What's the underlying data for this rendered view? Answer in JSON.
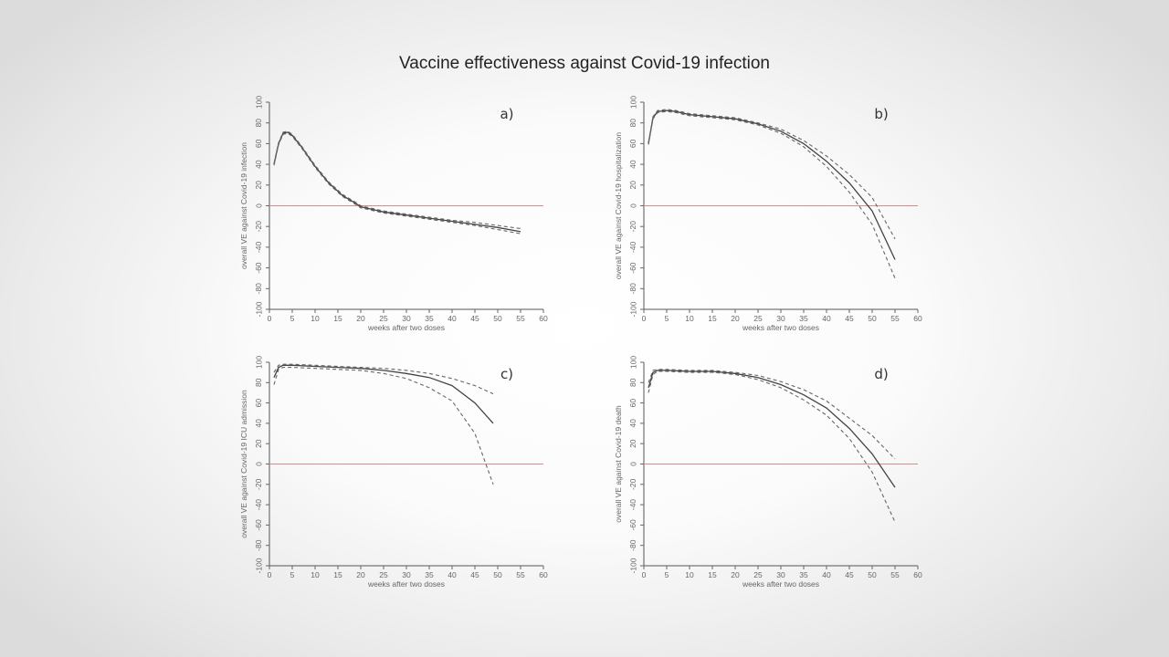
{
  "title": "Vaccine effectiveness against Covid-19 infection",
  "chart_data": [
    {
      "type": "line",
      "panel_label": "a)",
      "xlabel": "weeks after two doses",
      "ylabel": "overall VE against Covid-19 infection",
      "xlim": [
        0,
        60
      ],
      "ylim": [
        -100,
        100
      ],
      "x_ticks": [
        0,
        5,
        10,
        15,
        20,
        25,
        30,
        35,
        40,
        45,
        50,
        55,
        60
      ],
      "y_ticks": [
        100,
        80,
        60,
        40,
        20,
        0,
        -20,
        -40,
        -60,
        -80,
        -100
      ],
      "reference_line": {
        "y": 0,
        "color": "#555555"
      },
      "series": [
        {
          "style": "solid",
          "x": [
            1,
            2,
            3,
            4,
            5,
            7,
            10,
            13,
            16,
            19,
            20,
            22,
            25,
            30,
            35,
            40,
            45,
            50,
            55
          ],
          "y": [
            40,
            60,
            70,
            71,
            68,
            57,
            38,
            22,
            10,
            2,
            -1,
            -3,
            -6,
            -9,
            -12,
            -15,
            -18,
            -21,
            -25
          ]
        },
        {
          "style": "dashed",
          "x": [
            1,
            2,
            3,
            4,
            5,
            7,
            10,
            13,
            16,
            19,
            20,
            22,
            25,
            30,
            35,
            40,
            45,
            50,
            55
          ],
          "y": [
            41,
            61,
            71,
            72,
            69,
            58,
            39,
            23,
            11,
            3,
            0,
            -2,
            -5,
            -8,
            -11,
            -14,
            -16,
            -19,
            -22
          ]
        },
        {
          "style": "dashed",
          "x": [
            1,
            2,
            3,
            4,
            5,
            7,
            10,
            13,
            16,
            19,
            20,
            22,
            25,
            30,
            35,
            40,
            45,
            50,
            55
          ],
          "y": [
            39,
            59,
            69,
            70,
            67,
            56,
            37,
            21,
            9,
            1,
            -2,
            -4,
            -7,
            -10,
            -13,
            -16,
            -19,
            -23,
            -27
          ]
        }
      ]
    },
    {
      "type": "line",
      "panel_label": "b)",
      "xlabel": "weeks after two doses",
      "ylabel": "overall VE against Covid-19 hospitalization",
      "xlim": [
        0,
        60
      ],
      "ylim": [
        -100,
        100
      ],
      "x_ticks": [
        0,
        5,
        10,
        15,
        20,
        25,
        30,
        35,
        40,
        45,
        50,
        55,
        60
      ],
      "y_ticks": [
        100,
        80,
        60,
        40,
        20,
        0,
        -20,
        -40,
        -60,
        -80,
        -100
      ],
      "reference_line": {
        "y": 0,
        "color": "#d98a8a"
      },
      "series": [
        {
          "style": "solid",
          "x": [
            1,
            2,
            3,
            5,
            7,
            10,
            15,
            20,
            25,
            30,
            35,
            40,
            45,
            50,
            55
          ],
          "y": [
            60,
            85,
            91,
            92,
            91,
            88,
            86,
            84,
            79,
            72,
            60,
            43,
            22,
            -5,
            -52
          ]
        },
        {
          "style": "dashed",
          "x": [
            1,
            2,
            3,
            5,
            7,
            10,
            15,
            20,
            25,
            30,
            35,
            40,
            45,
            50,
            55
          ],
          "y": [
            61,
            86,
            92,
            93,
            92,
            89,
            87,
            85,
            80,
            74,
            63,
            48,
            30,
            8,
            -32
          ]
        },
        {
          "style": "dashed",
          "x": [
            1,
            2,
            3,
            5,
            7,
            10,
            15,
            20,
            25,
            30,
            35,
            40,
            45,
            50,
            55
          ],
          "y": [
            59,
            84,
            90,
            91,
            90,
            87,
            85,
            83,
            78,
            70,
            57,
            38,
            13,
            -18,
            -70
          ]
        }
      ]
    },
    {
      "type": "line",
      "panel_label": "c)",
      "xlabel": "weeks after two doses",
      "ylabel": "overall VE against Covid-19 ICU admission",
      "xlim": [
        0,
        60
      ],
      "ylim": [
        -100,
        100
      ],
      "x_ticks": [
        0,
        5,
        10,
        15,
        20,
        25,
        30,
        35,
        40,
        45,
        50,
        55,
        60
      ],
      "y_ticks": [
        100,
        80,
        60,
        40,
        20,
        0,
        -20,
        -40,
        -60,
        -80,
        -100
      ],
      "reference_line": {
        "y": 0,
        "color": "#d98a8a"
      },
      "series": [
        {
          "style": "solid",
          "x": [
            1,
            2,
            3,
            5,
            10,
            15,
            20,
            25,
            30,
            35,
            40,
            45,
            49
          ],
          "y": [
            85,
            95,
            97,
            97,
            96,
            95,
            94,
            92,
            89,
            85,
            77,
            60,
            40
          ]
        },
        {
          "style": "dashed",
          "x": [
            1,
            2,
            3,
            5,
            10,
            15,
            20,
            25,
            30,
            35,
            40,
            45,
            49
          ],
          "y": [
            90,
            97,
            98,
            98,
            97,
            96,
            95,
            94,
            92,
            89,
            84,
            77,
            69
          ]
        },
        {
          "style": "dashed",
          "x": [
            1,
            2,
            3,
            5,
            10,
            15,
            20,
            25,
            30,
            35,
            40,
            45,
            49
          ],
          "y": [
            78,
            93,
            95,
            95,
            94,
            93,
            92,
            89,
            84,
            75,
            62,
            30,
            -20
          ]
        }
      ]
    },
    {
      "type": "line",
      "panel_label": "d)",
      "xlabel": "weeks after two doses",
      "ylabel": "overall VE against Covid-19 death",
      "xlim": [
        0,
        60
      ],
      "ylim": [
        -100,
        100
      ],
      "x_ticks": [
        0,
        5,
        10,
        15,
        20,
        25,
        30,
        35,
        40,
        45,
        50,
        55,
        60
      ],
      "y_ticks": [
        100,
        80,
        60,
        40,
        20,
        0,
        -20,
        -40,
        -60,
        -80,
        -100
      ],
      "reference_line": {
        "y": 0,
        "color": "#d98a8a"
      },
      "series": [
        {
          "style": "solid",
          "x": [
            1,
            2,
            3,
            5,
            10,
            15,
            20,
            25,
            30,
            35,
            40,
            45,
            50,
            55
          ],
          "y": [
            75,
            90,
            92,
            92,
            91,
            91,
            89,
            85,
            78,
            68,
            55,
            35,
            10,
            -23
          ]
        },
        {
          "style": "dashed",
          "x": [
            1,
            2,
            3,
            5,
            10,
            15,
            20,
            25,
            30,
            35,
            40,
            45,
            50,
            55
          ],
          "y": [
            80,
            92,
            93,
            93,
            92,
            92,
            90,
            87,
            81,
            73,
            62,
            45,
            28,
            5
          ]
        },
        {
          "style": "dashed",
          "x": [
            1,
            2,
            3,
            5,
            10,
            15,
            20,
            25,
            30,
            35,
            40,
            45,
            50,
            55
          ],
          "y": [
            70,
            88,
            91,
            91,
            90,
            90,
            88,
            83,
            75,
            63,
            48,
            25,
            -8,
            -57
          ]
        }
      ]
    }
  ]
}
